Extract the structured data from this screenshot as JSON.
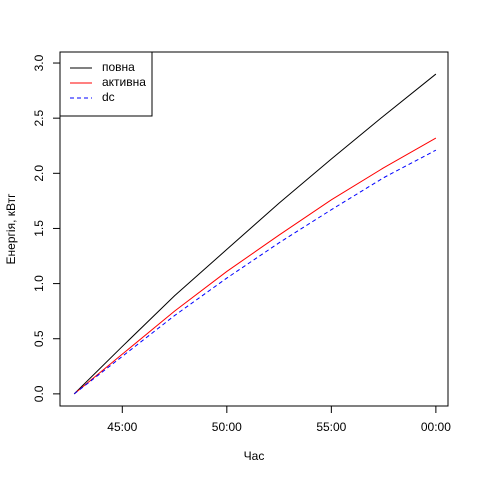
{
  "chart_data": {
    "type": "line",
    "xlabel": "Час",
    "ylabel": "Енергія, кВтг",
    "x": [
      42.7,
      45,
      47.5,
      50,
      52.5,
      55,
      57.5,
      60
    ],
    "series": [
      {
        "name": "повна",
        "color": "#000000",
        "linestyle": "solid",
        "values": [
          0,
          0.43,
          0.89,
          1.31,
          1.73,
          2.13,
          2.52,
          2.9
        ]
      },
      {
        "name": "активна",
        "color": "#ff0000",
        "linestyle": "solid",
        "values": [
          0,
          0.36,
          0.75,
          1.11,
          1.44,
          1.76,
          2.05,
          2.32
        ]
      },
      {
        "name": "dc",
        "color": "#0000ff",
        "linestyle": "dashed",
        "values": [
          0,
          0.34,
          0.71,
          1.05,
          1.37,
          1.67,
          1.96,
          2.21
        ]
      }
    ],
    "xlim": [
      42.02,
      60.58
    ],
    "xticks": [
      {
        "value": 45,
        "label": "45:00"
      },
      {
        "value": 50,
        "label": "50:00"
      },
      {
        "value": 55,
        "label": "55:00"
      },
      {
        "value": 60,
        "label": "00:00"
      }
    ],
    "ylim": [
      -0.11,
      3.1
    ],
    "yticks": [
      {
        "value": 0,
        "label": "0.0"
      },
      0.5,
      {
        "value": 1,
        "label": "1.0"
      },
      1.5,
      {
        "value": 2,
        "label": "2.0"
      },
      2.5,
      {
        "value": 3,
        "label": "3.0"
      }
    ],
    "legend": "top-left"
  }
}
